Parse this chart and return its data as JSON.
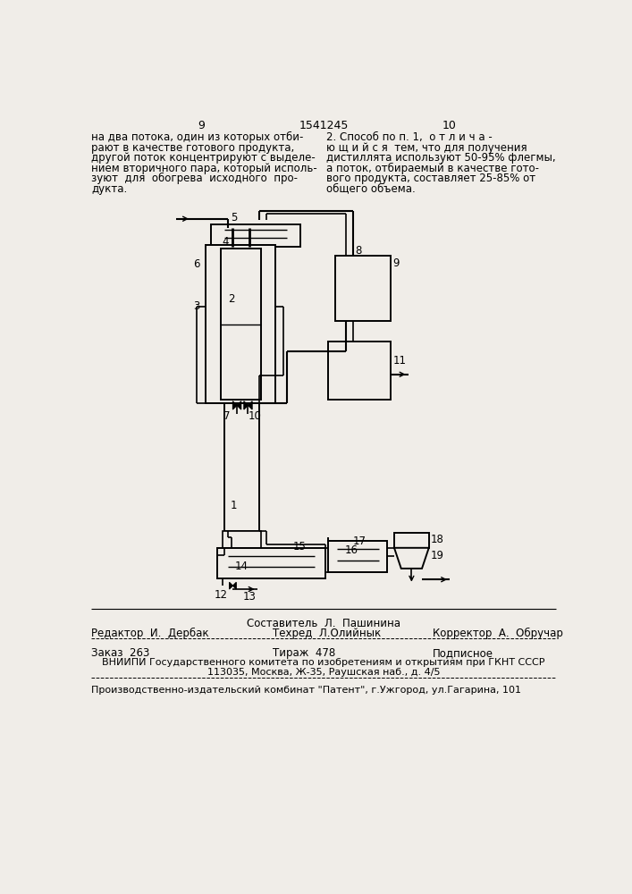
{
  "bg_color": "#f0ede8",
  "page_num_left": "9",
  "page_num_center": "1541245",
  "page_num_right": "10",
  "text_left": "на два потока, один из которых отби-\nрают в качестве готового продукта,\nдругой поток концентрируют с выделе-\nнием вторичного пара, который исполь-\nзуют  для  обогрева  исходного  про-\nдукта.",
  "text_right": "2. Способ по п. 1,  о т л и ч а -\nю щ и й с я  тем, что для получения\nдистиллята используют 50-95% флегмы,\nа поток, отбираемый в качестве гото-\nвого продукта, составляет 25-85% от\nобщего объема.",
  "footer_sestavitel": "Составитель  Л.  Пашинина",
  "footer_redaktor": "Редактор  И.  Дербак",
  "footer_tehred": "Техред  Л.Олийнык",
  "footer_korrektor": "Корректор  А.  Обручар",
  "footer_zakaz": "Заказ  263",
  "footer_tirazh": "Тираж  478",
  "footer_podpisnoe": "Подписное",
  "footer_vniip": "ВНИИПИ Государственного комитета по изобретениям и открытиям при ГКНТ СССР",
  "footer_addr": "113035, Москва, Ж-35, Раушская наб., д. 4/5",
  "footer_proizv": "Производственно-издательский комбинат \"Патент\", г.Ужгород, ул.Гагарина, 101"
}
